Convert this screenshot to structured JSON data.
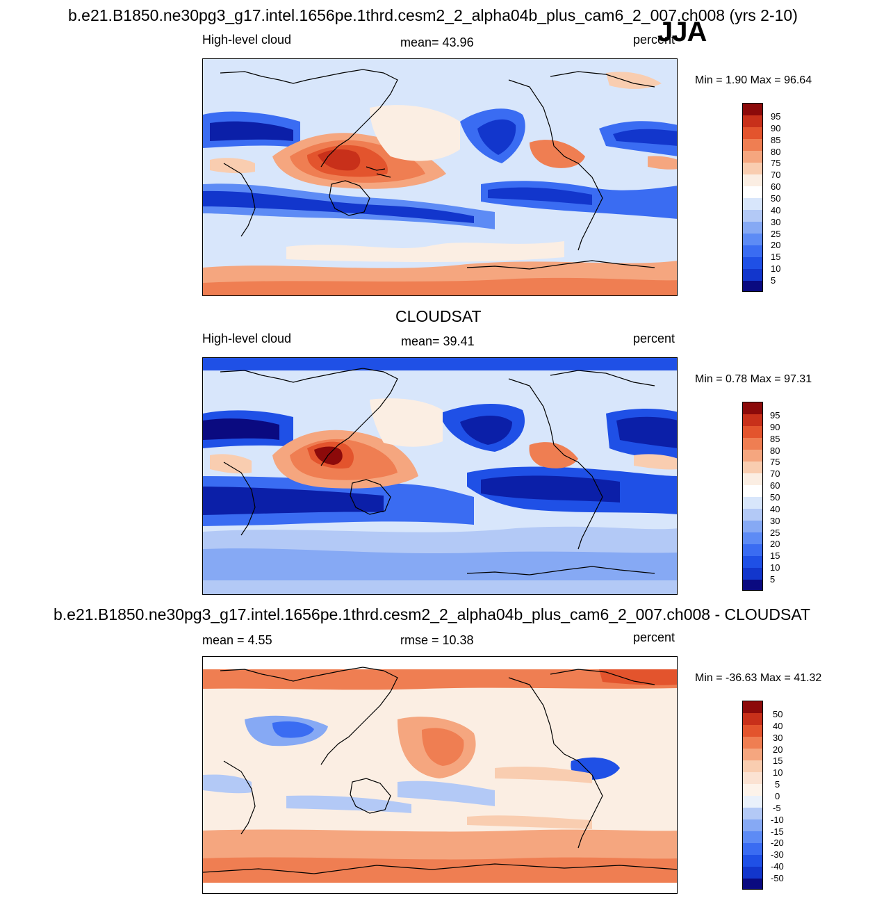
{
  "season": "JJA",
  "panels": [
    {
      "title": "b.e21.B1850.ne30pg3_g17.intel.1656pe.1thrd.cesm2_2_alpha04b_plus_cam6_2_007.ch008 (yrs 2-10)",
      "left_label": "High-level cloud",
      "center_label": "mean=  43.96",
      "right_label": "percent",
      "minmax": "Min =    1.90 Max =   96.64",
      "colorbar_levels": [
        "95",
        "90",
        "85",
        "80",
        "75",
        "70",
        "60",
        "50",
        "40",
        "30",
        "25",
        "20",
        "15",
        "10",
        "5"
      ]
    },
    {
      "title": "CLOUDSAT",
      "left_label": "High-level cloud",
      "center_label": "mean=  39.41",
      "right_label": "percent",
      "minmax": "Min =    0.78 Max =   97.31",
      "colorbar_levels": [
        "95",
        "90",
        "85",
        "80",
        "75",
        "70",
        "60",
        "50",
        "40",
        "30",
        "25",
        "20",
        "15",
        "10",
        "5"
      ]
    },
    {
      "title": "b.e21.B1850.ne30pg3_g17.intel.1656pe.1thrd.cesm2_2_alpha04b_plus_cam6_2_007.ch008 - CLOUDSAT",
      "left_label": "mean =    4.55",
      "center_label": "rmse =  10.38",
      "right_label": "percent",
      "minmax": "Min = -36.63 Max =   41.32",
      "colorbar_levels": [
        "50",
        "40",
        "30",
        "20",
        "15",
        "10",
        "5",
        "0",
        "-5",
        "-10",
        "-15",
        "-20",
        "-30",
        "-40",
        "-50"
      ]
    }
  ],
  "colors": {
    "scale": [
      "#0a0a80",
      "#0b1fa8",
      "#1236cc",
      "#1f50e6",
      "#3a6cf2",
      "#5d8bf5",
      "#86a9f4",
      "#b3c9f6",
      "#d8e6fb",
      "#fbeee3",
      "#f9cdb0",
      "#f5a67f",
      "#ef7e52",
      "#e3542d",
      "#c8301a",
      "#8c0a0a"
    ]
  }
}
